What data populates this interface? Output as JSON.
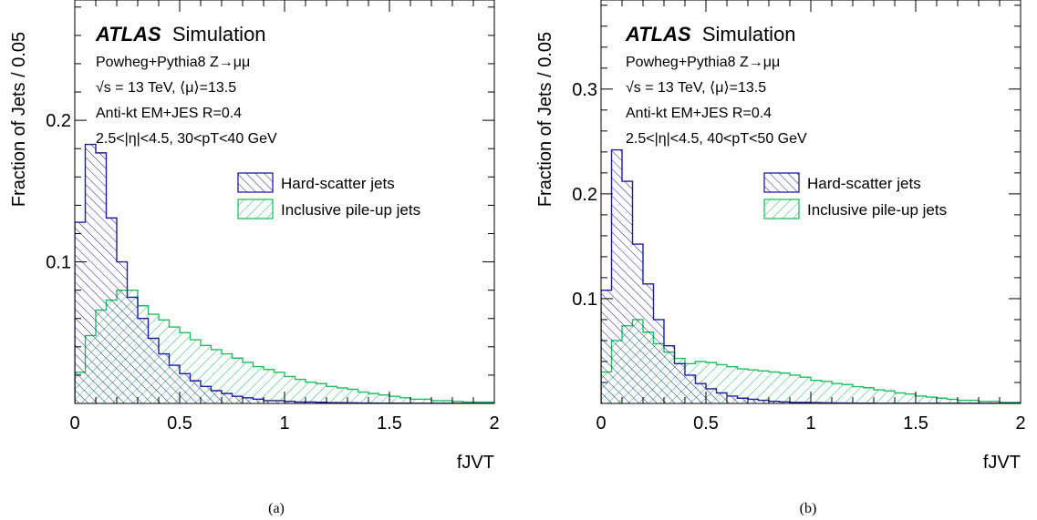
{
  "experiment": "ATLAS",
  "experiment_suffix": "Simulation",
  "colors": {
    "hard_scatter": "#1d1d9e",
    "pileup": "#1fbf5f",
    "axis": "#000000"
  },
  "chart_data": [
    {
      "type": "bar",
      "panel_label": "(a)",
      "xlabel": "fJVT",
      "ylabel": "Fraction of Jets / 0.05",
      "xlim": [
        0,
        2
      ],
      "ylim": [
        0,
        0.285
      ],
      "xticks": [
        "0",
        "0.5",
        "1",
        "1.5",
        "2"
      ],
      "yticks": [
        "0.1",
        "0.2"
      ],
      "ytick_values": [
        0.1,
        0.2
      ],
      "bin_width": 0.05,
      "info_lines": [
        "Powheg+Pythia8 Z→μμ",
        "√s = 13 TeV, ⟨μ⟩=13.5",
        "Anti-kt EM+JES R=0.4",
        "2.5<|η|<4.5, 30<pT<40 GeV"
      ],
      "series": [
        {
          "name": "Hard-scatter jets",
          "values": [
            0.128,
            0.183,
            0.177,
            0.131,
            0.1,
            0.075,
            0.06,
            0.046,
            0.035,
            0.027,
            0.021,
            0.016,
            0.012,
            0.009,
            0.007,
            0.005,
            0.004,
            0.003,
            0.002,
            0.002,
            0.0015,
            0.001,
            0.001,
            0.0008,
            0.0006,
            0.0005,
            0.0004,
            0.0003,
            0.0003,
            0.0002,
            0.0002,
            0.0002,
            0.0001,
            0.0001,
            0.0001,
            0.0001,
            0.0001,
            0.0001,
            0.0001,
            0.0001
          ]
        },
        {
          "name": "Inclusive pile-up jets",
          "values": [
            0.022,
            0.048,
            0.066,
            0.073,
            0.08,
            0.08,
            0.069,
            0.063,
            0.059,
            0.054,
            0.05,
            0.045,
            0.041,
            0.038,
            0.035,
            0.032,
            0.029,
            0.026,
            0.024,
            0.022,
            0.019,
            0.017,
            0.015,
            0.014,
            0.012,
            0.011,
            0.01,
            0.008,
            0.007,
            0.006,
            0.005,
            0.004,
            0.003,
            0.003,
            0.002,
            0.002,
            0.0015,
            0.001,
            0.001,
            0.001
          ]
        }
      ]
    },
    {
      "type": "bar",
      "panel_label": "(b)",
      "xlabel": "fJVT",
      "ylabel": "Fraction of Jets / 0.05",
      "xlim": [
        0,
        2
      ],
      "ylim": [
        0,
        0.385
      ],
      "xticks": [
        "0",
        "0.5",
        "1",
        "1.5",
        "2"
      ],
      "yticks": [
        "0.1",
        "0.2",
        "0.3"
      ],
      "ytick_values": [
        0.1,
        0.2,
        0.3
      ],
      "bin_width": 0.05,
      "info_lines": [
        "Powheg+Pythia8 Z→μμ",
        "√s = 13 TeV, ⟨μ⟩=13.5",
        "Anti-kt EM+JES R=0.4",
        "2.5<|η|<4.5, 40<pT<50 GeV"
      ],
      "series": [
        {
          "name": "Hard-scatter jets",
          "values": [
            0.108,
            0.242,
            0.212,
            0.152,
            0.114,
            0.08,
            0.055,
            0.038,
            0.027,
            0.019,
            0.014,
            0.01,
            0.007,
            0.005,
            0.004,
            0.003,
            0.002,
            0.0015,
            0.001,
            0.001,
            0.0008,
            0.0006,
            0.0005,
            0.0004,
            0.0003,
            0.0003,
            0.0002,
            0.0002,
            0.0002,
            0.0001,
            0.0001,
            0.0001,
            0.0001,
            0.0001,
            0.0001,
            0.0001,
            0.0001,
            0.0001,
            0.0001,
            0.0001
          ]
        },
        {
          "name": "Inclusive pile-up jets",
          "values": [
            0.03,
            0.06,
            0.074,
            0.08,
            0.068,
            0.057,
            0.049,
            0.043,
            0.038,
            0.04,
            0.039,
            0.037,
            0.035,
            0.033,
            0.032,
            0.031,
            0.03,
            0.029,
            0.027,
            0.025,
            0.022,
            0.021,
            0.019,
            0.018,
            0.016,
            0.015,
            0.013,
            0.012,
            0.01,
            0.009,
            0.007,
            0.006,
            0.005,
            0.004,
            0.003,
            0.003,
            0.002,
            0.002,
            0.001,
            0.001
          ]
        }
      ]
    }
  ]
}
